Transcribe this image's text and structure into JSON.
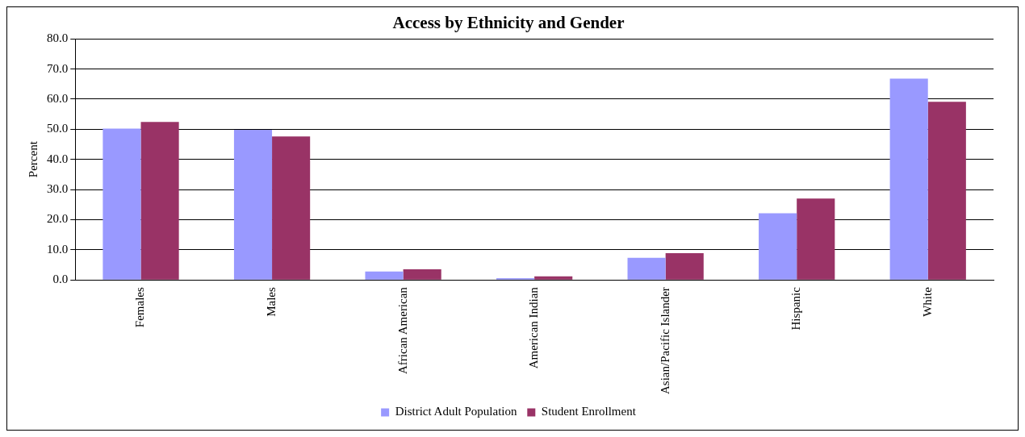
{
  "chart_data": {
    "type": "bar",
    "title": "Access by Ethnicity and Gender",
    "ylabel": "Percent",
    "categories": [
      "Females",
      "Males",
      "African American",
      "American Indian",
      "Asian/Pacific Islander",
      "Hispanic",
      "White"
    ],
    "series": [
      {
        "name": "District Adult Population",
        "color": "#9999ff",
        "values": [
          50.2,
          49.8,
          2.8,
          0.6,
          7.3,
          22.1,
          66.8
        ]
      },
      {
        "name": "Student Enrollment",
        "color": "#993366",
        "values": [
          52.4,
          47.6,
          3.5,
          1.2,
          8.9,
          27.0,
          59.1
        ]
      }
    ],
    "ylim": [
      0,
      80
    ],
    "yticks": [
      {
        "value": 0,
        "label": "0.0"
      },
      {
        "value": 10,
        "label": "10.0"
      },
      {
        "value": 20,
        "label": "20.0"
      },
      {
        "value": 30,
        "label": "30.0"
      },
      {
        "value": 40,
        "label": "40.0"
      },
      {
        "value": 50,
        "label": "50.0"
      },
      {
        "value": 60,
        "label": "60.0"
      },
      {
        "value": 70,
        "label": "70.0"
      },
      {
        "value": 80,
        "label": "80.0"
      }
    ],
    "grid": "y",
    "legend": "bottom"
  }
}
